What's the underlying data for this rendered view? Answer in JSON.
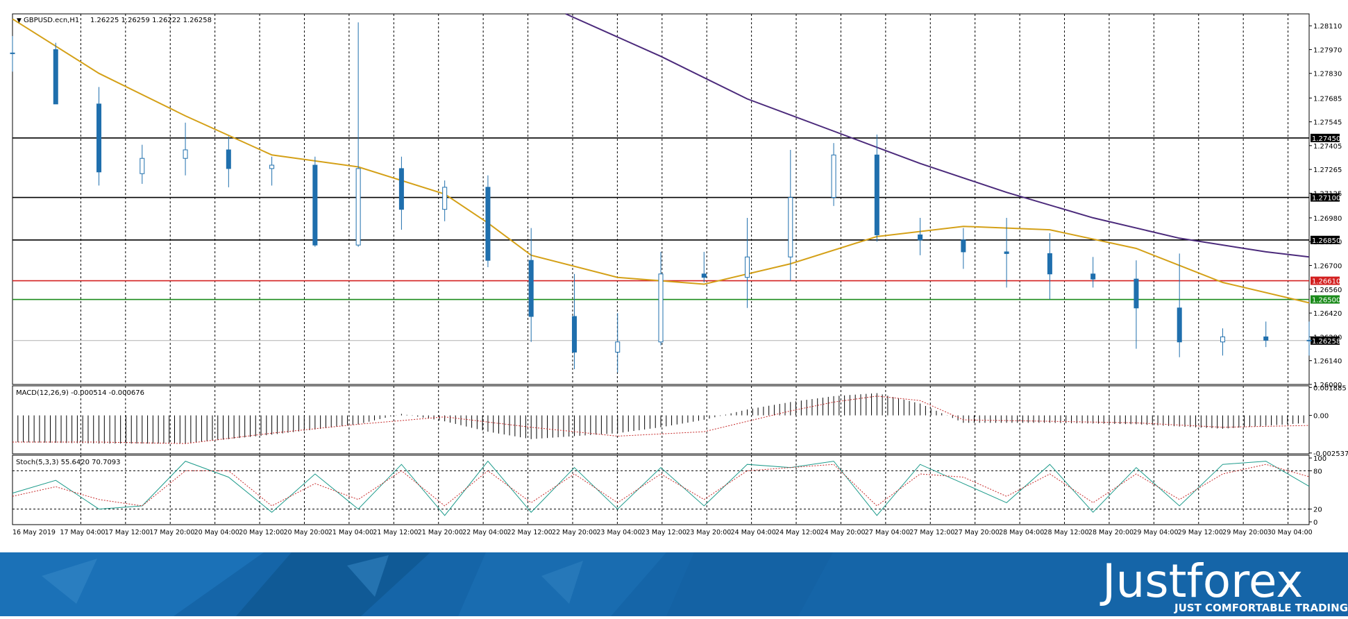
{
  "header": {
    "symbol": "GBPUSD.ecn,H1",
    "ohlc": "1.26225 1.26259 1.26222 1.26258"
  },
  "chart_data": [
    {
      "type": "candlestick",
      "title": "GBPUSD.ecn,H1  1.26225 1.26259 1.26222 1.26258",
      "ylim": [
        1.26,
        1.2818
      ],
      "y_ticks": [
        "1.28110",
        "1.27970",
        "1.27830",
        "1.27685",
        "1.27545",
        "1.27405",
        "1.27265",
        "1.27125",
        "1.26980",
        "1.26840",
        "1.26700",
        "1.26560",
        "1.26420",
        "1.26280",
        "1.26140",
        "1.26000"
      ],
      "horizontal_levels": [
        {
          "value": 1.2745,
          "label": "1.27450",
          "color": "#000000"
        },
        {
          "value": 1.271,
          "label": "1.27100",
          "color": "#000000"
        },
        {
          "value": 1.2685,
          "label": "1.26850",
          "color": "#000000"
        },
        {
          "value": 1.265,
          "label": "1.26500",
          "color": "#1a8a1a"
        },
        {
          "value": 1.2661,
          "label": "1.26610",
          "color": "#d31f1f"
        }
      ],
      "last_price": {
        "value": 1.26258,
        "label": "1.26258"
      },
      "x_labels": [
        "16 May 2019",
        "17 May 04:00",
        "17 May 12:00",
        "17 May 20:00",
        "20 May 04:00",
        "20 May 12:00",
        "20 May 20:00",
        "21 May 04:00",
        "21 May 12:00",
        "21 May 20:00",
        "22 May 04:00",
        "22 May 12:00",
        "22 May 20:00",
        "23 May 04:00",
        "23 May 12:00",
        "23 May 20:00",
        "24 May 04:00",
        "24 May 12:00",
        "24 May 20:00",
        "27 May 04:00",
        "27 May 12:00",
        "27 May 20:00",
        "28 May 04:00",
        "28 May 12:00",
        "28 May 20:00",
        "29 May 04:00",
        "29 May 12:00",
        "29 May 20:00",
        "30 May 04:00"
      ],
      "series": [
        {
          "kind": "moving-average",
          "color": "#d4a017",
          "x": [
            0,
            20,
            40,
            60,
            80,
            100,
            110,
            120,
            140,
            160,
            180,
            200,
            220,
            240,
            260,
            280,
            300
          ],
          "values": [
            1.2815,
            1.2783,
            1.2758,
            1.2735,
            1.2728,
            1.2712,
            1.2695,
            1.2676,
            1.2663,
            1.2659,
            1.2671,
            1.2687,
            1.2693,
            1.2691,
            1.268,
            1.266,
            1.2648
          ]
        },
        {
          "kind": "moving-average",
          "color": "#4b2a7b",
          "x": [
            128,
            150,
            170,
            190,
            210,
            230,
            250,
            270,
            290,
            300
          ],
          "values": [
            1.2818,
            1.2793,
            1.2768,
            1.2749,
            1.273,
            1.2713,
            1.2698,
            1.2686,
            1.2678,
            1.2675
          ]
        }
      ],
      "candles": {
        "x": [
          0,
          10,
          20,
          30,
          40,
          50,
          60,
          70,
          80,
          90,
          100,
          110,
          120,
          130,
          140,
          150,
          160,
          170,
          180,
          190,
          200,
          210,
          220,
          230,
          240,
          250,
          260,
          270,
          280,
          290,
          300
        ],
        "open": [
          1.2795,
          1.2797,
          1.2765,
          1.2724,
          1.2733,
          1.2738,
          1.2727,
          1.2729,
          1.2682,
          1.2727,
          1.2703,
          1.2716,
          1.2673,
          1.264,
          1.2619,
          1.2625,
          1.2665,
          1.2663,
          1.2675,
          1.271,
          1.2735,
          1.2688,
          1.2685,
          1.2678,
          1.2677,
          1.2665,
          1.2662,
          1.2645,
          1.2625,
          1.2628,
          1.2626
        ],
        "high": [
          1.2805,
          1.2801,
          1.2775,
          1.2741,
          1.2754,
          1.2746,
          1.2734,
          1.2734,
          1.2813,
          1.2734,
          1.272,
          1.2723,
          1.2692,
          1.2665,
          1.2642,
          1.2678,
          1.2678,
          1.2698,
          1.2738,
          1.2742,
          1.2747,
          1.2698,
          1.2692,
          1.2698,
          1.2689,
          1.2675,
          1.2673,
          1.2677,
          1.2633,
          1.2637,
          1.2637
        ],
        "low": [
          1.2784,
          1.2765,
          1.2717,
          1.2718,
          1.2723,
          1.2716,
          1.2717,
          1.2681,
          1.2681,
          1.2691,
          1.2696,
          1.2669,
          1.2625,
          1.2609,
          1.2607,
          1.2623,
          1.266,
          1.2645,
          1.2661,
          1.2705,
          1.2684,
          1.2676,
          1.2668,
          1.2657,
          1.265,
          1.2657,
          1.2621,
          1.2616,
          1.2617,
          1.2622,
          1.2617
        ],
        "close": [
          1.2795,
          1.2765,
          1.2725,
          1.2733,
          1.2738,
          1.2727,
          1.2729,
          1.2682,
          1.2727,
          1.2703,
          1.2716,
          1.2673,
          1.264,
          1.2619,
          1.2625,
          1.2665,
          1.2663,
          1.2675,
          1.271,
          1.2735,
          1.2688,
          1.2685,
          1.2678,
          1.2677,
          1.2665,
          1.2662,
          1.2645,
          1.2625,
          1.2628,
          1.2626,
          1.26258
        ]
      }
    },
    {
      "type": "histogram",
      "title": "MACD(12,26,9) -0.000514 -0.000676",
      "y_ticks": [
        "0.001885",
        "0.00",
        "-0.002537"
      ],
      "ylim": [
        -0.0025,
        0.0019
      ],
      "series": [
        {
          "kind": "histogram",
          "color": "#000000",
          "x": [
            0,
            20,
            40,
            60,
            80,
            90,
            100,
            110,
            120,
            130,
            140,
            150,
            160,
            170,
            180,
            190,
            200,
            210,
            220,
            240,
            260,
            280,
            300
          ],
          "values": [
            -0.0018,
            -0.0019,
            -0.0019,
            -0.0013,
            -0.0006,
            0.0001,
            -0.0004,
            -0.0011,
            -0.0016,
            -0.0014,
            -0.0012,
            -0.0008,
            -0.0003,
            0.0004,
            0.0009,
            0.0013,
            0.0015,
            0.0008,
            -0.0005,
            -0.0005,
            -0.0006,
            -0.0009,
            -0.0005
          ]
        },
        {
          "kind": "signal",
          "color": "#c62828",
          "x": [
            0,
            20,
            40,
            60,
            80,
            100,
            120,
            140,
            160,
            180,
            190,
            200,
            210,
            220,
            240,
            260,
            280,
            300
          ],
          "values": [
            -0.0018,
            -0.0018,
            -0.0019,
            -0.0012,
            -0.0006,
            -0.0001,
            -0.0008,
            -0.0014,
            -0.0011,
            0.0003,
            0.0009,
            0.0013,
            0.001,
            -0.0003,
            -0.0004,
            -0.0005,
            -0.0008,
            -0.00068
          ]
        }
      ]
    },
    {
      "type": "line",
      "title": "Stoch(5,3,3) 55.6420 70.7093",
      "y_ticks": [
        "100",
        "80",
        "20",
        "0"
      ],
      "ylim": [
        0,
        100
      ],
      "levels": [
        80,
        20
      ],
      "series": [
        {
          "kind": "main",
          "color": "#1b9a8a",
          "x": [
            0,
            10,
            20,
            30,
            40,
            50,
            60,
            70,
            80,
            90,
            100,
            110,
            120,
            130,
            140,
            150,
            160,
            170,
            180,
            190,
            200,
            210,
            220,
            230,
            240,
            250,
            260,
            270,
            280,
            290,
            300
          ],
          "values": [
            45,
            65,
            20,
            25,
            95,
            70,
            15,
            75,
            20,
            90,
            10,
            95,
            15,
            85,
            20,
            85,
            25,
            90,
            85,
            95,
            10,
            90,
            60,
            30,
            90,
            15,
            85,
            25,
            90,
            95,
            55.642
          ]
        },
        {
          "kind": "signal",
          "color": "#c62828",
          "x": [
            0,
            10,
            20,
            30,
            40,
            50,
            60,
            70,
            80,
            90,
            100,
            110,
            120,
            130,
            140,
            150,
            160,
            170,
            180,
            190,
            200,
            210,
            220,
            230,
            240,
            250,
            260,
            270,
            280,
            290,
            300
          ],
          "values": [
            40,
            55,
            35,
            25,
            80,
            80,
            25,
            60,
            35,
            80,
            25,
            80,
            30,
            75,
            30,
            75,
            35,
            80,
            85,
            90,
            25,
            75,
            70,
            40,
            75,
            30,
            75,
            35,
            75,
            90,
            70.7093
          ]
        }
      ]
    }
  ],
  "banner": {
    "brand": "Justforex",
    "tagline": "JUST COMFORTABLE TRADING",
    "bg": "#1565a8"
  }
}
